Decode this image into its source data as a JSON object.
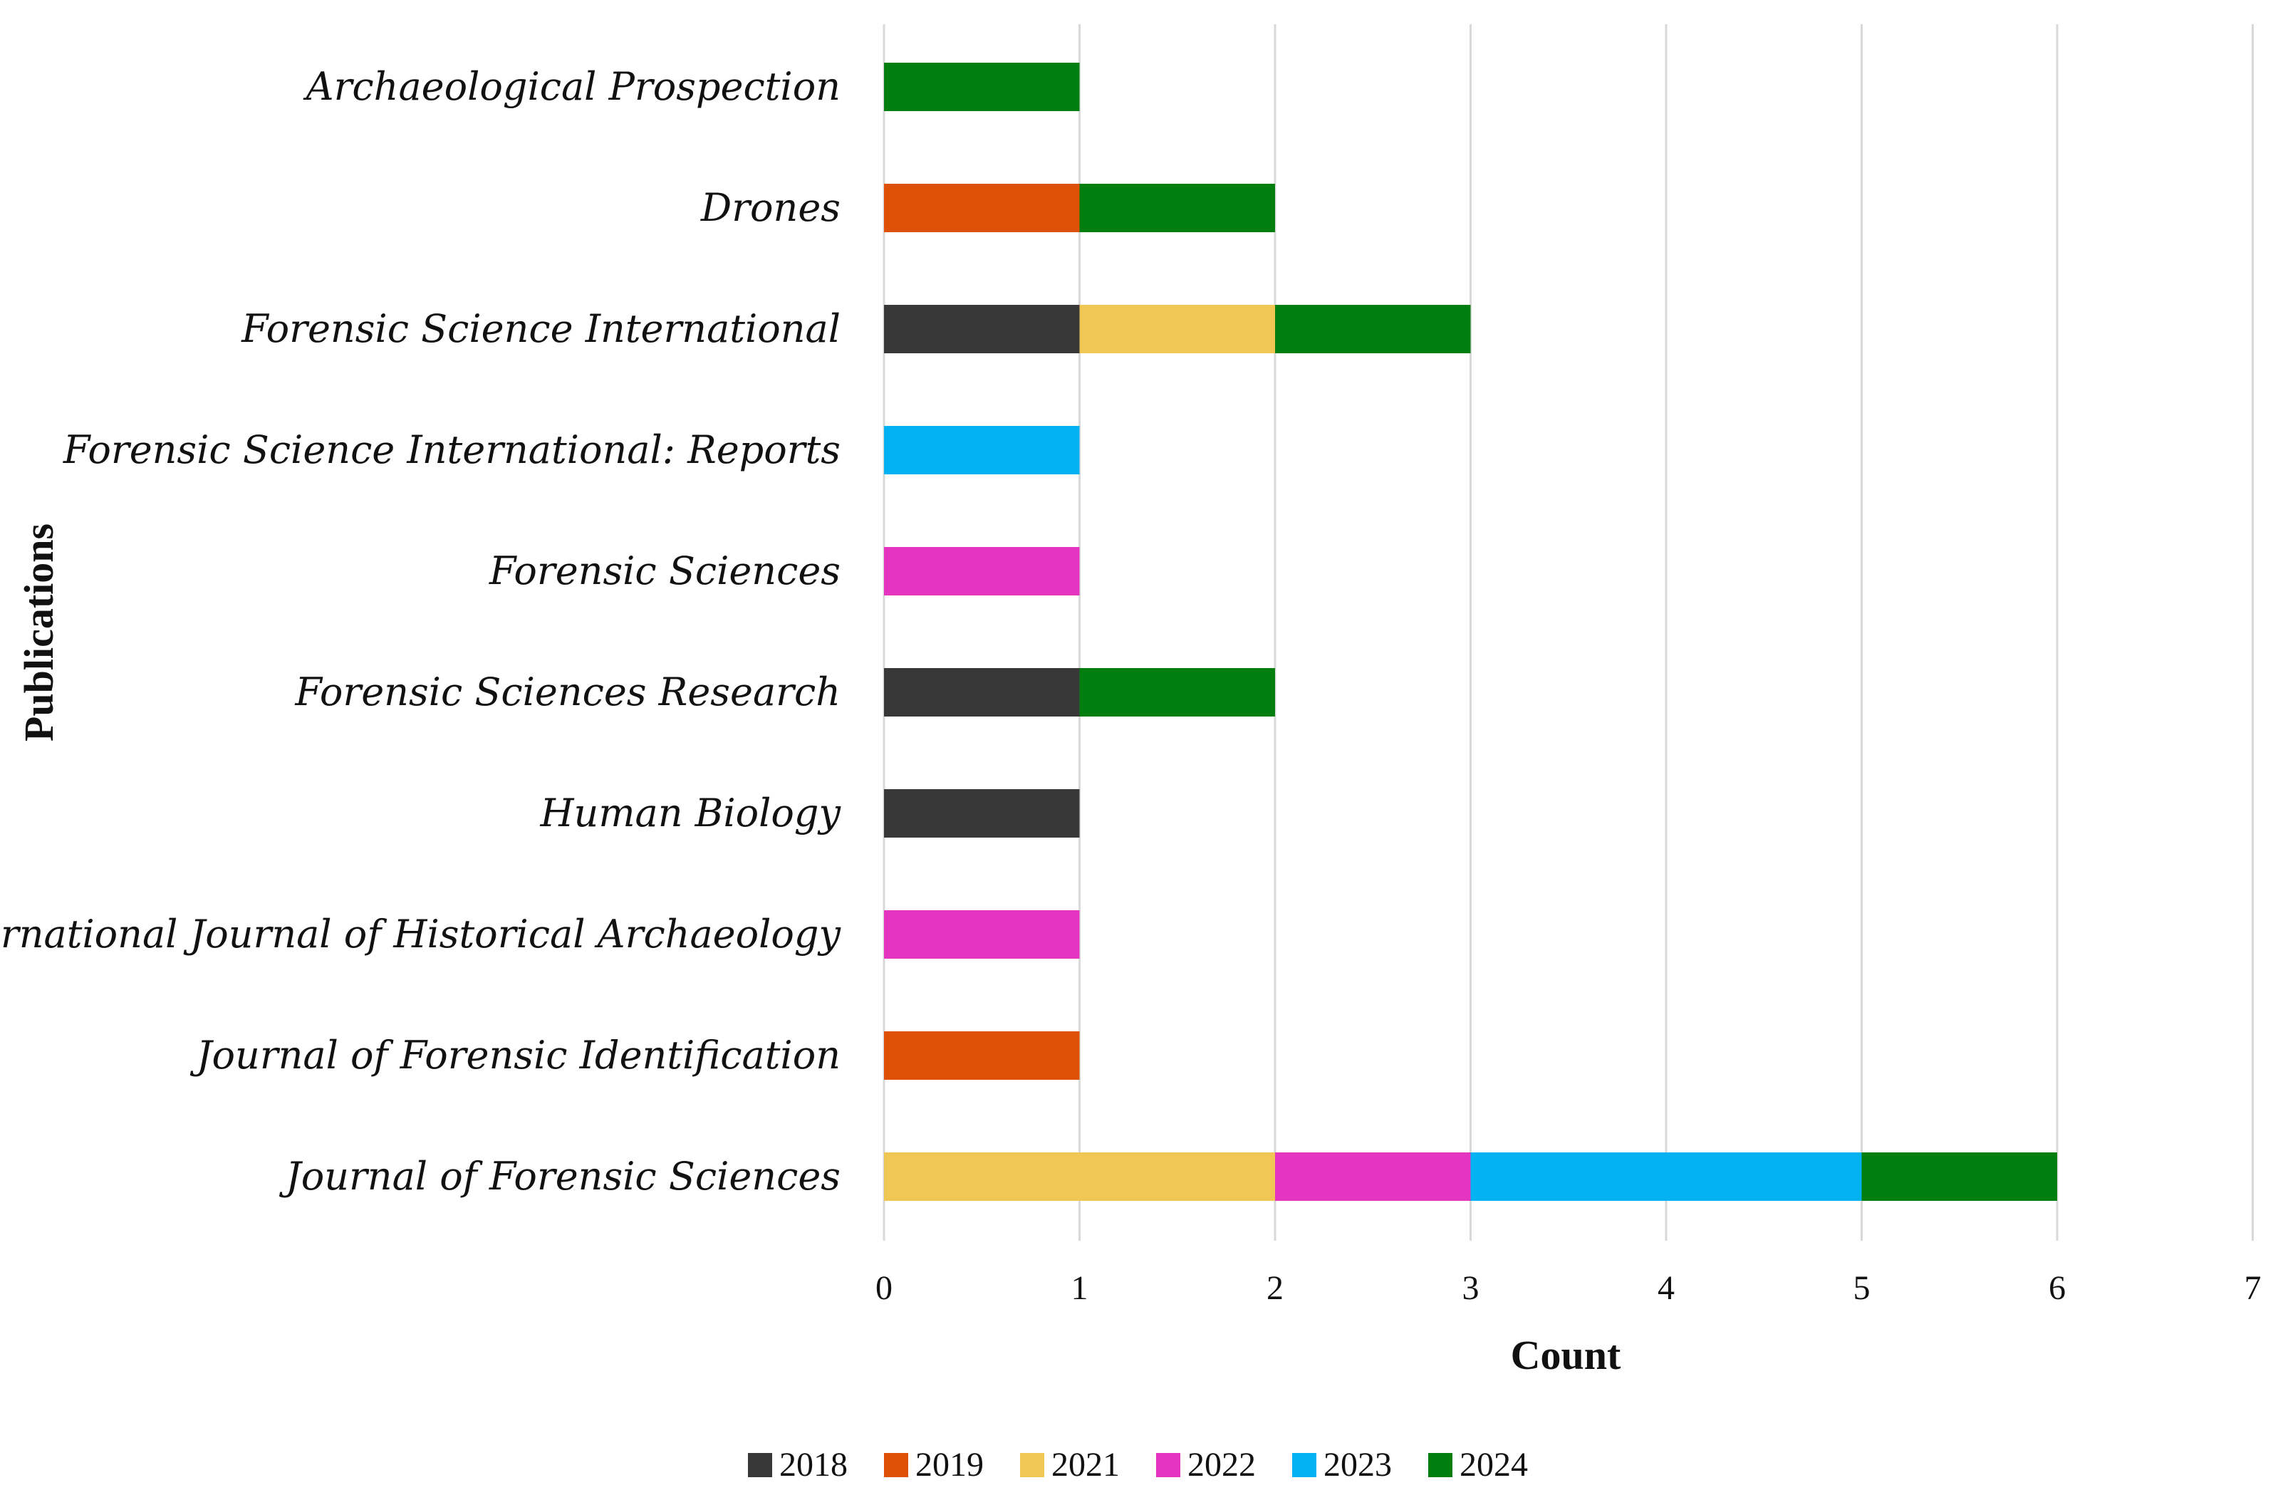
{
  "chart_data": {
    "type": "bar",
    "orientation": "horizontal",
    "stacked": true,
    "title": "",
    "xlabel": "Count",
    "ylabel": "Publications",
    "xlim": [
      0,
      7
    ],
    "xticks": [
      "0",
      "1",
      "2",
      "3",
      "4",
      "5",
      "6",
      "7"
    ],
    "grid": "vertical",
    "legend_position": "bottom",
    "categories": [
      "Archaeological Prospection",
      "Drones",
      "Forensic Science International",
      "Forensic Science International: Reports",
      "Forensic Sciences",
      "Forensic Sciences Research",
      "Human Biology",
      "International Journal of Historical Archaeology",
      "Journal of Forensic Identification",
      "Journal of Forensic Sciences"
    ],
    "series": [
      {
        "name": "2018",
        "color": "#383838",
        "values": [
          0,
          0,
          1,
          0,
          0,
          1,
          1,
          0,
          0,
          0
        ]
      },
      {
        "name": "2019",
        "color": "#dd5006",
        "values": [
          0,
          1,
          0,
          0,
          0,
          0,
          0,
          0,
          1,
          0
        ]
      },
      {
        "name": "2021",
        "color": "#f0c655",
        "values": [
          0,
          0,
          1,
          0,
          0,
          0,
          0,
          0,
          0,
          2
        ]
      },
      {
        "name": "2022",
        "color": "#e535c0",
        "values": [
          0,
          0,
          0,
          0,
          1,
          0,
          0,
          1,
          0,
          1
        ]
      },
      {
        "name": "2023",
        "color": "#03b2f2",
        "values": [
          0,
          0,
          0,
          1,
          0,
          0,
          0,
          0,
          0,
          2
        ]
      },
      {
        "name": "2024",
        "color": "#007f10",
        "values": [
          1,
          1,
          1,
          0,
          0,
          1,
          0,
          0,
          0,
          1
        ]
      }
    ]
  }
}
